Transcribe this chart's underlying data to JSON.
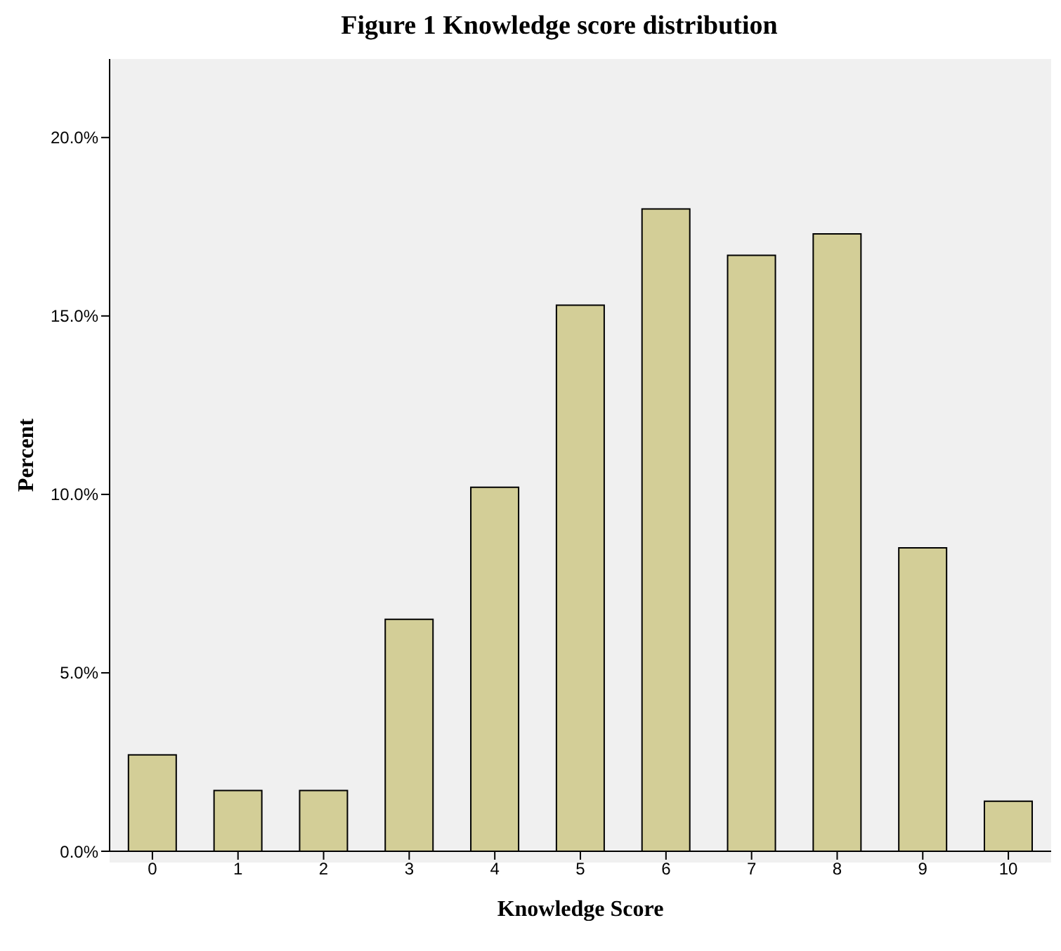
{
  "chart_data": {
    "type": "bar",
    "title": "Figure 1 Knowledge score distribution",
    "xlabel": "Knowledge Score",
    "ylabel": "Percent",
    "categories": [
      "0",
      "1",
      "2",
      "3",
      "4",
      "5",
      "6",
      "7",
      "8",
      "9",
      "10"
    ],
    "values": [
      2.7,
      1.7,
      1.7,
      6.5,
      10.2,
      15.3,
      18.0,
      16.7,
      17.3,
      8.5,
      1.4
    ],
    "color": "#d3ce97",
    "ylim": [
      0,
      22.2
    ],
    "yticks": [
      {
        "value": 0,
        "label": "0.0%"
      },
      {
        "value": 5,
        "label": "5.0%"
      },
      {
        "value": 10,
        "label": "10.0%"
      },
      {
        "value": 15,
        "label": "15.0%"
      },
      {
        "value": 20,
        "label": "20.0%"
      }
    ],
    "grid": false,
    "legend": false
  }
}
